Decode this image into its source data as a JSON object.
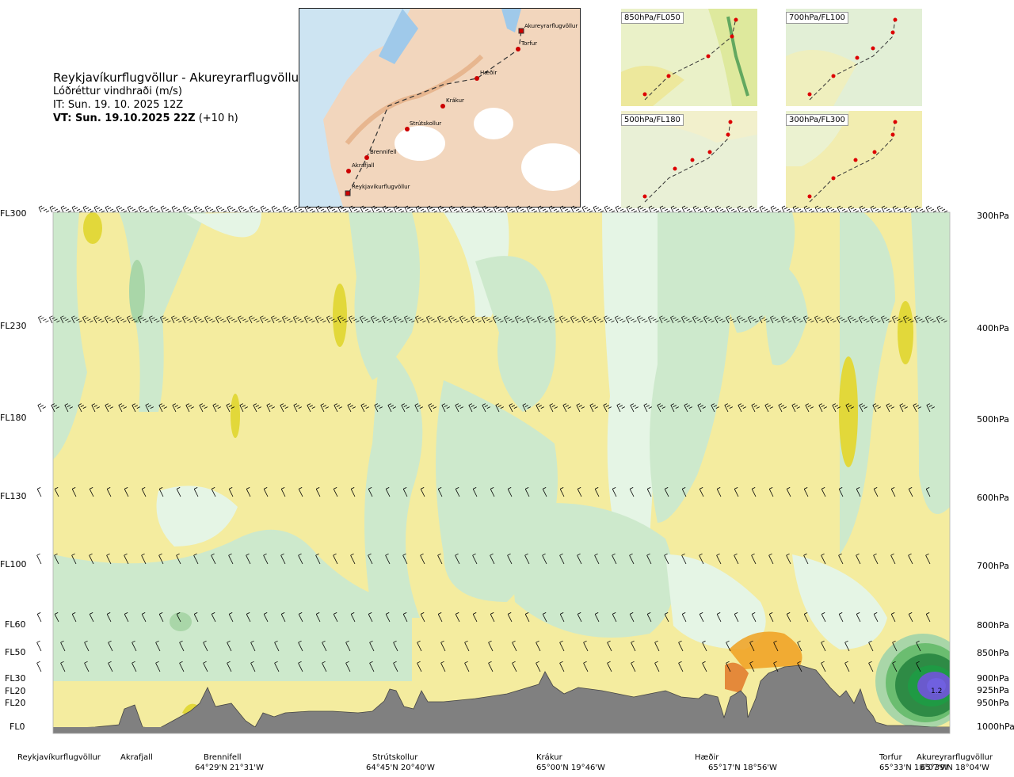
{
  "header": {
    "title": "Reykjavíkurflugvöllur - Akureyrarflugvöllur",
    "subtitle": "Lóðréttur vindhraði (m/s)",
    "init_time": "IT: Sun. 19. 10. 2025 12Z",
    "valid_time_label": "VT: Sun. 19.10.2025 22Z",
    "valid_time_offset": "(+10 h)"
  },
  "route_map": {
    "waypoints": [
      "Akureyrarflugvöllur",
      "Torfur",
      "Hæðir",
      "Krákur",
      "Strútskollur",
      "Brennifell",
      "Akrafjall",
      "Reykjavíkurflugvöllur"
    ]
  },
  "mini_maps": [
    {
      "label": "850hPa/FL050"
    },
    {
      "label": "700hPa/FL100"
    },
    {
      "label": "500hPa/FL180"
    },
    {
      "label": "300hPa/FL300"
    }
  ],
  "chart_data": {
    "type": "heatmap",
    "title": "Reykjavíkurflugvöllur - Akureyrarflugvöllur",
    "subtitle": "Lóðréttur vindhraði (m/s)",
    "left_axis": [
      "FL300",
      "FL230",
      "FL180",
      "FL130",
      "FL100",
      "FL60",
      "FL50",
      "FL30",
      "FL20",
      "FL20",
      "FL0"
    ],
    "right_axis": [
      "300hPa",
      "400hPa",
      "500hPa",
      "600hPa",
      "700hPa",
      "800hPa",
      "850hPa",
      "900hPa",
      "925hPa",
      "950hPa",
      "1000hPa"
    ],
    "pressure_levels_hpa": [
      300,
      400,
      500,
      600,
      700,
      800,
      850,
      900,
      925,
      950,
      1000
    ],
    "max_annotation": "1.2",
    "colors": {
      "strong_down": "#e2d83a",
      "down": "#f4ec9f",
      "weak_down": "#fbf6c6",
      "neutral": "#ffffff",
      "weak_up": "#e5f5e5",
      "up": "#cde9cc",
      "moderate_up": "#a9d6a8",
      "strong_up": "#6bbd70",
      "very_strong_up": "#2e8b45",
      "extreme_up": "#1f9a44",
      "max_up": "#7060e0",
      "strong_descent_orange": "#f0a020",
      "terrain": "#808080"
    },
    "locations": [
      {
        "name": "Reykjavíkurflugvöllur",
        "coord": ""
      },
      {
        "name": "Akrafjall",
        "coord": ""
      },
      {
        "name": "Brennifell",
        "coord": "64°29'N 21°31'W"
      },
      {
        "name": "Strútskollur",
        "coord": "64°45'N 20°40'W"
      },
      {
        "name": "Krákur",
        "coord": "65°00'N 19°46'W"
      },
      {
        "name": "Hæðir",
        "coord": "65°17'N 18°56'W"
      },
      {
        "name": "Torfur",
        "coord": "65°33'N 18°07'W"
      },
      {
        "name": "Akureyrarflugvöllur",
        "coord": "65°39'N 18°04'W"
      }
    ]
  }
}
